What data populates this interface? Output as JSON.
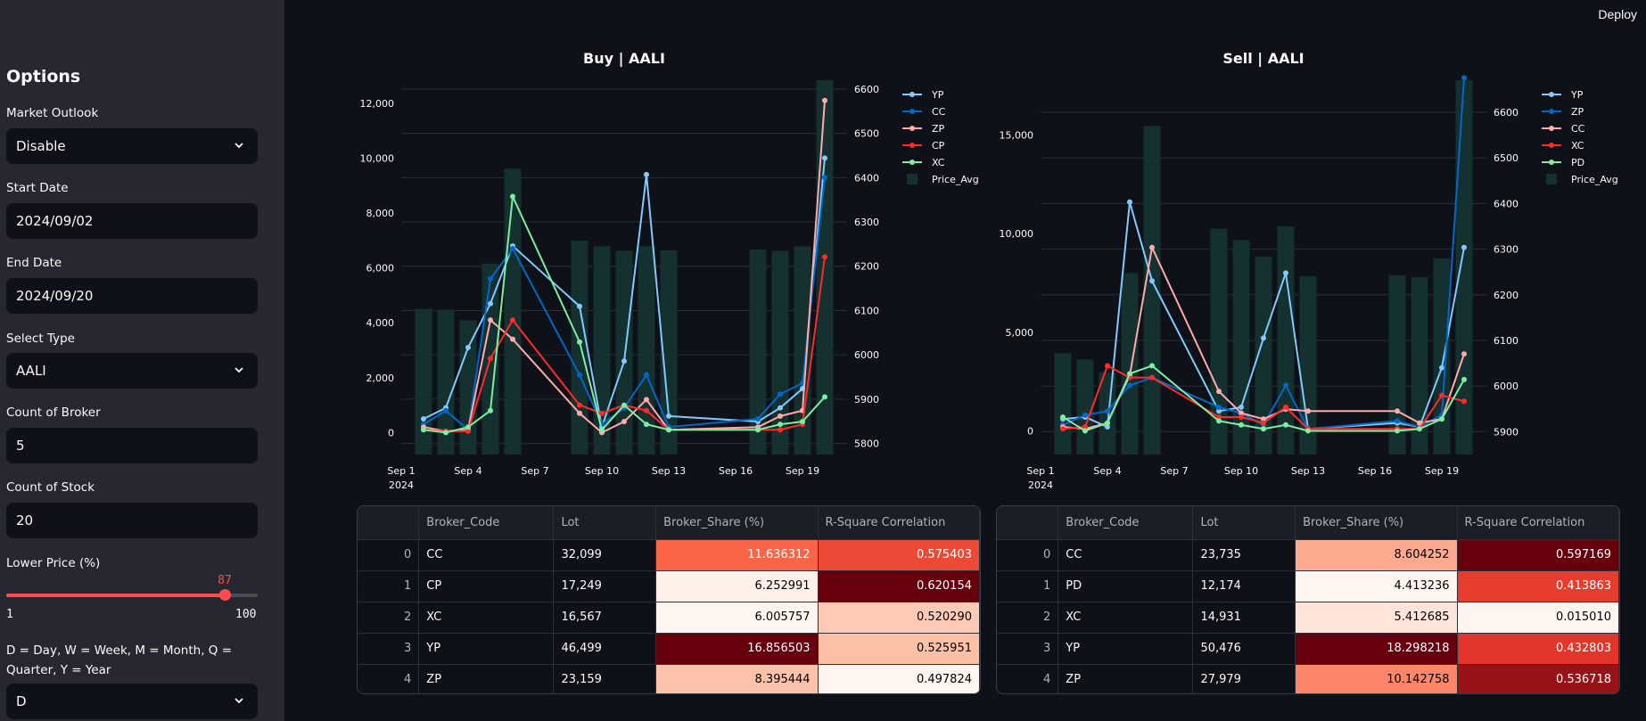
{
  "header": {
    "deploy_label": "Deploy"
  },
  "sidebar": {
    "title": "Options",
    "market_outlook": {
      "label": "Market Outlook",
      "value": "Disable"
    },
    "start_date": {
      "label": "Start Date",
      "value": "2024/09/02"
    },
    "end_date": {
      "label": "End Date",
      "value": "2024/09/20"
    },
    "select_type": {
      "label": "Select Type",
      "value": "AALI"
    },
    "count_broker": {
      "label": "Count of Broker",
      "value": "5"
    },
    "count_stock": {
      "label": "Count of Stock",
      "value": "20"
    },
    "lower_price": {
      "label": "Lower Price (%)",
      "value": 87,
      "value_text": "87",
      "min": "1",
      "max": "100"
    },
    "period": {
      "label": "D = Day, W = Week, M = Month, Q = Quarter, Y = Year",
      "value": "D"
    }
  },
  "colors": {
    "YP": "#83c9ff",
    "CC": "#0068c9",
    "ZP": "#ffabab",
    "CP": "#ff2b2b",
    "XC": "#7defa1",
    "PD": "#7defa1",
    "bar": "#14302f",
    "accent": "#ff4b4b"
  },
  "chart_data": [
    {
      "type": "line",
      "title": "Buy | AALI",
      "x_ticks": [
        "Sep 1",
        "Sep 4",
        "Sep 7",
        "Sep 10",
        "Sep 13",
        "Sep 16",
        "Sep 19"
      ],
      "x_sub": "2024",
      "ylim": [
        -800,
        13000
      ],
      "y_ticks": [
        "0",
        "2,000",
        "4,000",
        "6,000",
        "8,000",
        "10,000",
        "12,000"
      ],
      "y2lim": [
        5775,
        6630
      ],
      "y2_ticks": [
        "5800",
        "5900",
        "6000",
        "6100",
        "6200",
        "6300",
        "6400",
        "6500",
        "6600"
      ],
      "days": [
        2,
        3,
        4,
        5,
        6,
        9,
        10,
        11,
        12,
        13,
        17,
        18,
        19,
        20
      ],
      "price_avg": [
        6104,
        6102,
        6078,
        6206,
        6420,
        6258,
        6245,
        6235,
        6245,
        6236,
        6238,
        6235,
        6245,
        6620
      ],
      "series": [
        {
          "name": "YP",
          "color": "#83c9ff",
          "values": [
            500,
            900,
            3100,
            4700,
            6800,
            4600,
            200,
            2600,
            9400,
            600,
            400,
            900,
            1600,
            10000
          ]
        },
        {
          "name": "CC",
          "color": "#0068c9",
          "values": [
            300,
            800,
            100,
            5600,
            6700,
            2100,
            300,
            900,
            2100,
            200,
            500,
            1400,
            1800,
            9300
          ]
        },
        {
          "name": "ZP",
          "color": "#ffabab",
          "values": [
            200,
            50,
            100,
            4100,
            3400,
            700,
            0,
            400,
            1200,
            100,
            200,
            600,
            800,
            12100
          ]
        },
        {
          "name": "CP",
          "color": "#ff2b2b",
          "values": [
            100,
            50,
            50,
            2700,
            4100,
            1000,
            700,
            1000,
            800,
            100,
            100,
            100,
            300,
            6400
          ]
        },
        {
          "name": "XC",
          "color": "#7defa1",
          "values": [
            100,
            0,
            200,
            800,
            8600,
            3300,
            100,
            1000,
            300,
            100,
            100,
            300,
            400,
            1300
          ]
        }
      ],
      "bar_legend": "Price_Avg",
      "legend": "top-right"
    },
    {
      "type": "line",
      "title": "Sell | AALI",
      "x_ticks": [
        "Sep 1",
        "Sep 4",
        "Sep 7",
        "Sep 10",
        "Sep 13",
        "Sep 16",
        "Sep 19"
      ],
      "x_sub": "2024",
      "ylim": [
        -1200,
        18000
      ],
      "y_ticks": [
        "0",
        "5,000",
        "10,000",
        "15,000"
      ],
      "y2lim": [
        5850,
        6680
      ],
      "y2_ticks": [
        "5900",
        "6000",
        "6100",
        "6200",
        "6300",
        "6400",
        "6500",
        "6600"
      ],
      "days": [
        2,
        3,
        4,
        5,
        6,
        9,
        10,
        11,
        12,
        13,
        17,
        18,
        19,
        20
      ],
      "price_avg": [
        6072,
        6058,
        6030,
        6248,
        6570,
        6345,
        6320,
        6284,
        6350,
        6241,
        6243,
        6239,
        6280,
        6670
      ],
      "series": [
        {
          "name": "YP",
          "color": "#83c9ff",
          "values": [
            600,
            700,
            200,
            11600,
            7600,
            1000,
            1200,
            4700,
            8000,
            100,
            400,
            200,
            3200,
            9300
          ]
        },
        {
          "name": "ZP",
          "color": "#0068c9",
          "values": [
            300,
            800,
            1000,
            2300,
            2700,
            1200,
            900,
            300,
            2300,
            100,
            500,
            200,
            800,
            17900
          ]
        },
        {
          "name": "CC",
          "color": "#ffabab",
          "values": [
            200,
            100,
            400,
            2800,
            9300,
            2000,
            900,
            600,
            1100,
            1000,
            1000,
            400,
            600,
            3900
          ]
        },
        {
          "name": "XC",
          "color": "#ff2b2b",
          "values": [
            100,
            200,
            3300,
            2700,
            2700,
            700,
            700,
            400,
            1200,
            100,
            100,
            100,
            1800,
            1500
          ]
        },
        {
          "name": "PD",
          "color": "#7defa1",
          "values": [
            700,
            0,
            400,
            2900,
            3300,
            500,
            300,
            100,
            300,
            0,
            0,
            100,
            600,
            2600
          ]
        }
      ],
      "bar_legend": "Price_Avg",
      "legend": "top-right"
    }
  ],
  "tables": [
    {
      "headers": [
        "",
        "Broker_Code",
        "Lot",
        "Broker_Share (%)",
        "R-Square Correlation"
      ],
      "rows": [
        {
          "idx": "0",
          "code": "CC",
          "lot": "32,099",
          "share": "11.636312",
          "r2": "0.575403",
          "share_v": 11.636312,
          "r2_v": 0.575403
        },
        {
          "idx": "1",
          "code": "CP",
          "lot": "17,249",
          "share": "6.252991",
          "r2": "0.620154",
          "share_v": 6.252991,
          "r2_v": 0.620154
        },
        {
          "idx": "2",
          "code": "XC",
          "lot": "16,567",
          "share": "6.005757",
          "r2": "0.520290",
          "share_v": 6.005757,
          "r2_v": 0.52029
        },
        {
          "idx": "3",
          "code": "YP",
          "lot": "46,499",
          "share": "16.856503",
          "r2": "0.525951",
          "share_v": 16.856503,
          "r2_v": 0.525951
        },
        {
          "idx": "4",
          "code": "ZP",
          "lot": "23,159",
          "share": "8.395444",
          "r2": "0.497824",
          "share_v": 8.395444,
          "r2_v": 0.497824
        }
      ]
    },
    {
      "headers": [
        "",
        "Broker_Code",
        "Lot",
        "Broker_Share (%)",
        "R-Square Correlation"
      ],
      "rows": [
        {
          "idx": "0",
          "code": "CC",
          "lot": "23,735",
          "share": "8.604252",
          "r2": "0.597169",
          "share_v": 8.604252,
          "r2_v": 0.597169
        },
        {
          "idx": "1",
          "code": "PD",
          "lot": "12,174",
          "share": "4.413236",
          "r2": "0.413863",
          "share_v": 4.413236,
          "r2_v": 0.413863
        },
        {
          "idx": "2",
          "code": "XC",
          "lot": "14,931",
          "share": "5.412685",
          "r2": "0.015010",
          "share_v": 5.412685,
          "r2_v": 0.01501
        },
        {
          "idx": "3",
          "code": "YP",
          "lot": "50,476",
          "share": "18.298218",
          "r2": "0.432803",
          "share_v": 18.298218,
          "r2_v": 0.432803
        },
        {
          "idx": "4",
          "code": "ZP",
          "lot": "27,979",
          "share": "10.142758",
          "r2": "0.536718",
          "share_v": 10.142758,
          "r2_v": 0.536718
        }
      ]
    }
  ]
}
